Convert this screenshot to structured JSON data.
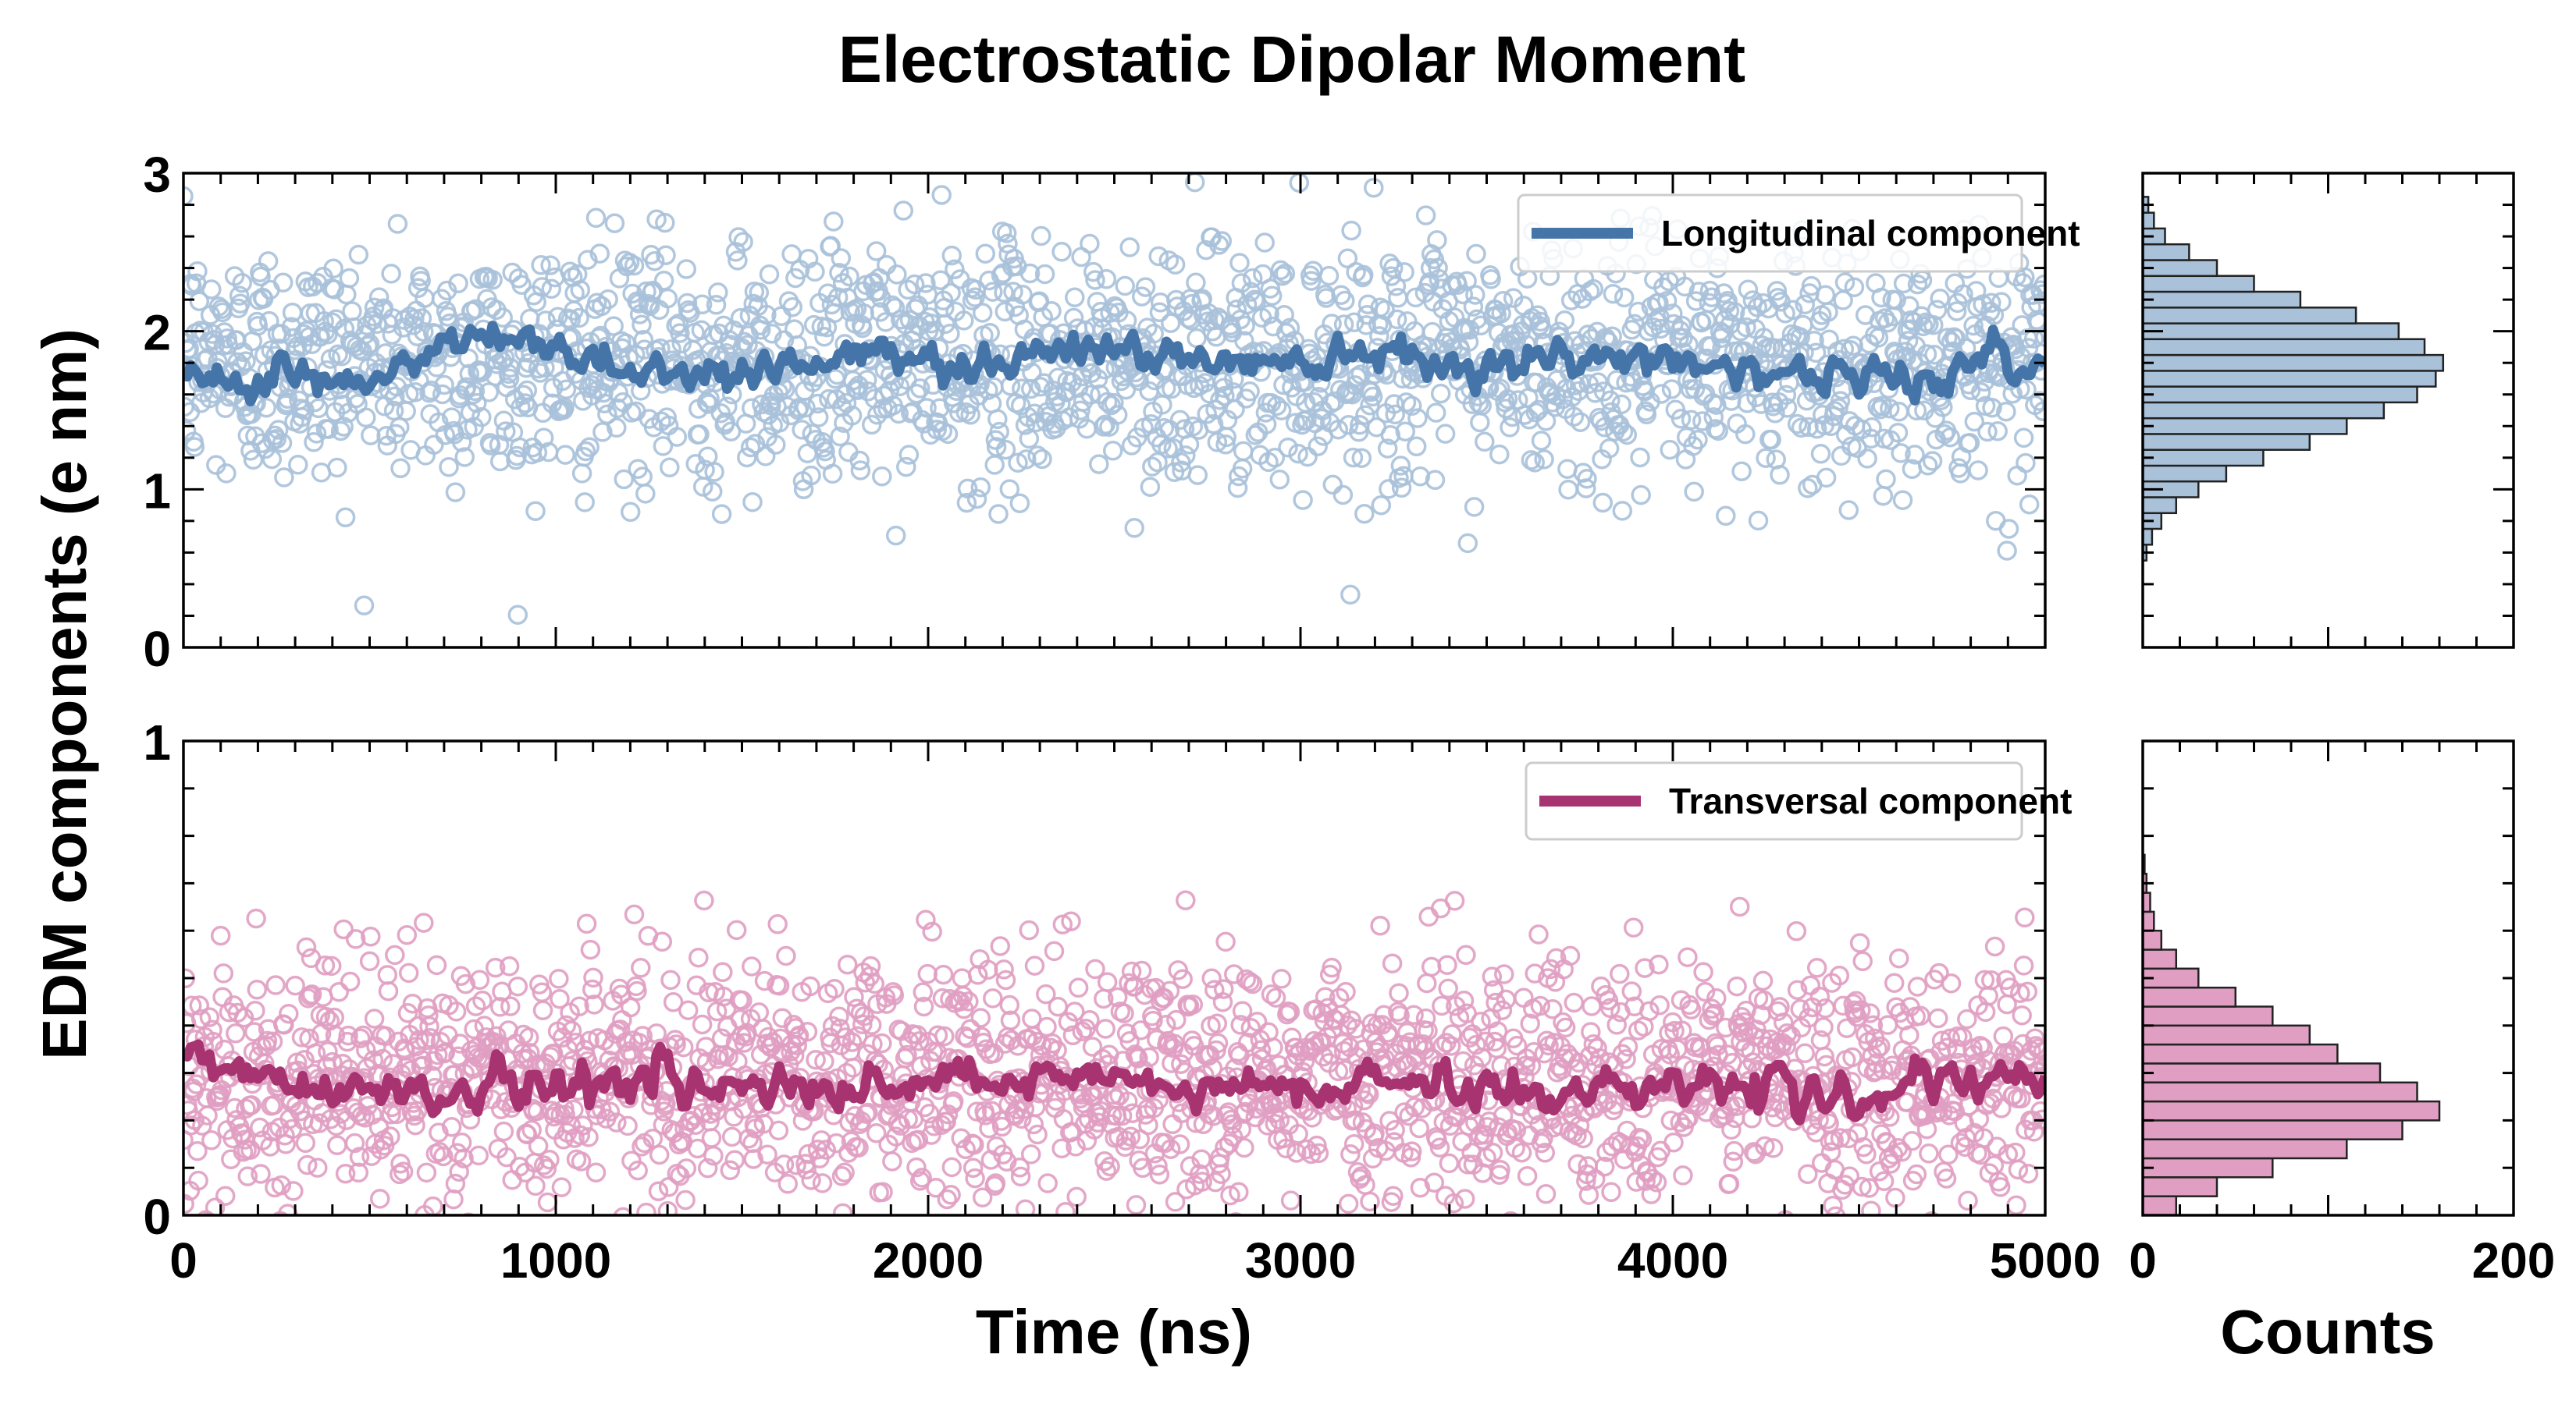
{
  "title": "Electrostatic Dipolar Moment",
  "colors": {
    "longitudinal": "#4575a8",
    "longitudinal_fill": "#a9c1d9",
    "transversal": "#a83371",
    "transversal_fill": "#e09fc2"
  },
  "chart_data": [
    {
      "type": "scatter",
      "panel": "top-left",
      "x_range": [
        0,
        5000
      ],
      "ylim": [
        0,
        3
      ],
      "yticks": [
        "0",
        "1",
        "2",
        "3"
      ],
      "series": [
        {
          "name": "Longitudinal component",
          "render": "points+running-mean",
          "n_points": 2000,
          "mean": 1.8,
          "std": 0.38
        }
      ],
      "running_mean_approx": {
        "x": [
          0,
          250,
          500,
          750,
          1000,
          1250,
          1500,
          1750,
          2000,
          2250,
          2500,
          2750,
          3000,
          3250,
          3500,
          3750,
          4000,
          4250,
          4500,
          4750,
          5000
        ],
        "y": [
          1.7,
          1.75,
          1.65,
          1.95,
          1.9,
          1.75,
          1.75,
          1.85,
          1.8,
          1.85,
          1.9,
          1.8,
          1.85,
          1.9,
          1.8,
          1.8,
          1.85,
          1.75,
          1.7,
          1.75,
          1.8
        ]
      },
      "legend": {
        "position": "top-right",
        "entries": [
          "Longitudinal component"
        ]
      }
    },
    {
      "type": "scatter",
      "panel": "bottom-left",
      "x_range": [
        0,
        5000
      ],
      "xticks": [
        "0",
        "1000",
        "2000",
        "3000",
        "4000",
        "5000"
      ],
      "xlabel": "Time (ns)",
      "ylim": [
        0,
        1
      ],
      "yticks": [
        "0",
        "1"
      ],
      "series": [
        {
          "name": "Transversal component",
          "render": "points+running-mean",
          "n_points": 2000,
          "mean": 0.29,
          "std": 0.13
        }
      ],
      "running_mean_approx": {
        "x": [
          0,
          250,
          500,
          750,
          1000,
          1250,
          1500,
          1750,
          2000,
          2250,
          2500,
          2750,
          3000,
          3250,
          3500,
          3750,
          4000,
          4250,
          4500,
          4750,
          5000
        ],
        "y": [
          0.32,
          0.29,
          0.27,
          0.26,
          0.28,
          0.29,
          0.27,
          0.25,
          0.28,
          0.27,
          0.29,
          0.26,
          0.27,
          0.28,
          0.27,
          0.25,
          0.3,
          0.26,
          0.25,
          0.27,
          0.29
        ]
      },
      "legend": {
        "position": "top-right",
        "entries": [
          "Transversal component"
        ]
      }
    },
    {
      "type": "bar",
      "orientation": "horizontal",
      "panel": "top-right",
      "xlim": [
        0,
        200
      ],
      "ylim": [
        0,
        3
      ],
      "bin_centers": [
        0.6,
        0.7,
        0.8,
        0.9,
        1.0,
        1.1,
        1.2,
        1.3,
        1.4,
        1.5,
        1.6,
        1.7,
        1.8,
        1.9,
        2.0,
        2.1,
        2.2,
        2.3,
        2.4,
        2.5,
        2.6,
        2.7,
        2.8
      ],
      "counts": [
        2,
        5,
        10,
        18,
        30,
        45,
        65,
        90,
        110,
        130,
        148,
        158,
        162,
        152,
        138,
        115,
        85,
        60,
        40,
        25,
        12,
        6,
        3
      ]
    },
    {
      "type": "bar",
      "orientation": "horizontal",
      "panel": "bottom-right",
      "xlim": [
        0,
        200
      ],
      "xticks": [
        "0",
        "200"
      ],
      "xlabel": "Counts",
      "ylim": [
        0,
        1
      ],
      "bin_centers": [
        0.02,
        0.06,
        0.1,
        0.14,
        0.18,
        0.22,
        0.26,
        0.3,
        0.34,
        0.38,
        0.42,
        0.46,
        0.5,
        0.54,
        0.58,
        0.62,
        0.66,
        0.7,
        0.74
      ],
      "counts": [
        18,
        40,
        70,
        110,
        140,
        160,
        148,
        128,
        105,
        90,
        70,
        50,
        30,
        18,
        10,
        6,
        4,
        2,
        1
      ]
    }
  ],
  "ylabel": "EDM components (e nm)"
}
